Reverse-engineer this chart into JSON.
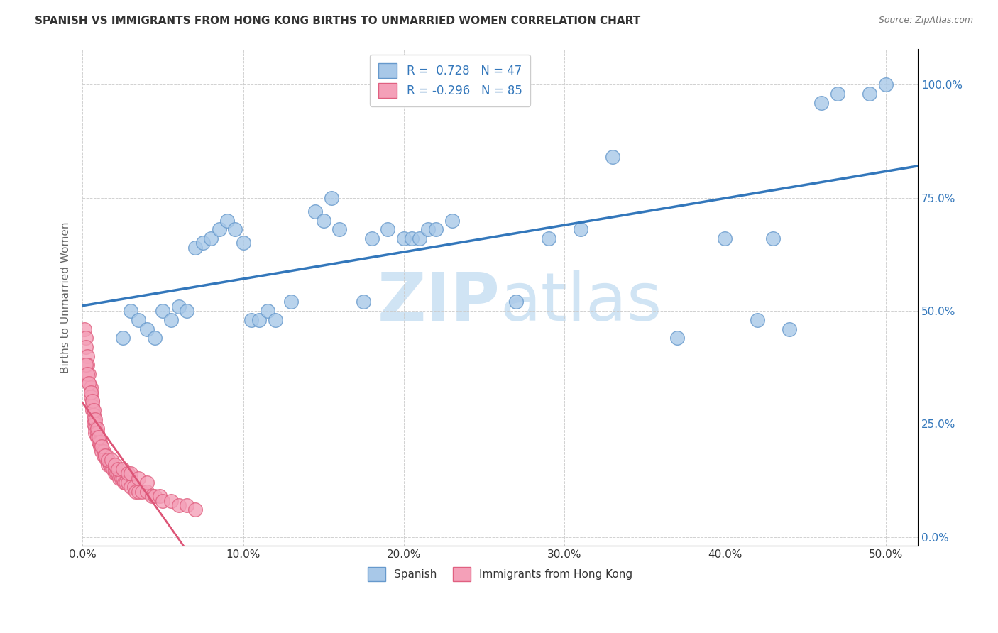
{
  "title": "SPANISH VS IMMIGRANTS FROM HONG KONG BIRTHS TO UNMARRIED WOMEN CORRELATION CHART",
  "source": "Source: ZipAtlas.com",
  "ylabel": "Births to Unmarried Women",
  "xlim": [
    0.0,
    0.52
  ],
  "ylim": [
    -0.02,
    1.08
  ],
  "legend_r_blue": "R =  0.728",
  "legend_n_blue": "N = 47",
  "legend_r_pink": "R = -0.296",
  "legend_n_pink": "N = 85",
  "legend_labels": [
    "Spanish",
    "Immigrants from Hong Kong"
  ],
  "blue_fill": "#a8c8e8",
  "blue_edge": "#6699cc",
  "pink_fill": "#f4a0b8",
  "pink_edge": "#e06080",
  "trend_blue": "#3377bb",
  "trend_pink": "#dd5577",
  "trend_pink_dashed": "#ddaabb",
  "watermark": "ZIPatlas",
  "watermark_color": "#d0e4f4",
  "background": "#ffffff",
  "text_color": "#333333",
  "right_axis_color": "#3377bb",
  "grid_color": "#cccccc",
  "spanish_x": [
    0.025,
    0.03,
    0.035,
    0.04,
    0.045,
    0.05,
    0.055,
    0.06,
    0.065,
    0.07,
    0.075,
    0.08,
    0.085,
    0.09,
    0.095,
    0.1,
    0.105,
    0.11,
    0.115,
    0.12,
    0.13,
    0.145,
    0.15,
    0.155,
    0.16,
    0.175,
    0.18,
    0.19,
    0.2,
    0.205,
    0.21,
    0.215,
    0.22,
    0.23,
    0.27,
    0.29,
    0.31,
    0.33,
    0.37,
    0.4,
    0.42,
    0.43,
    0.44,
    0.46,
    0.47,
    0.49,
    0.5
  ],
  "spanish_y": [
    0.44,
    0.5,
    0.48,
    0.46,
    0.44,
    0.5,
    0.48,
    0.51,
    0.5,
    0.64,
    0.65,
    0.66,
    0.68,
    0.7,
    0.68,
    0.65,
    0.48,
    0.48,
    0.5,
    0.48,
    0.52,
    0.72,
    0.7,
    0.75,
    0.68,
    0.52,
    0.66,
    0.68,
    0.66,
    0.66,
    0.66,
    0.68,
    0.68,
    0.7,
    0.52,
    0.66,
    0.68,
    0.84,
    0.44,
    0.66,
    0.48,
    0.66,
    0.46,
    0.96,
    0.98,
    0.98,
    1.0
  ],
  "hk_x": [
    0.001,
    0.002,
    0.002,
    0.003,
    0.003,
    0.004,
    0.004,
    0.005,
    0.005,
    0.005,
    0.006,
    0.006,
    0.006,
    0.007,
    0.007,
    0.007,
    0.008,
    0.008,
    0.008,
    0.009,
    0.009,
    0.009,
    0.01,
    0.01,
    0.01,
    0.011,
    0.011,
    0.012,
    0.012,
    0.013,
    0.013,
    0.014,
    0.014,
    0.015,
    0.015,
    0.016,
    0.016,
    0.017,
    0.017,
    0.018,
    0.019,
    0.02,
    0.02,
    0.021,
    0.022,
    0.023,
    0.024,
    0.025,
    0.026,
    0.027,
    0.028,
    0.03,
    0.032,
    0.033,
    0.035,
    0.037,
    0.04,
    0.043,
    0.045,
    0.048,
    0.05,
    0.055,
    0.06,
    0.065,
    0.07,
    0.002,
    0.003,
    0.004,
    0.005,
    0.006,
    0.007,
    0.008,
    0.009,
    0.01,
    0.012,
    0.014,
    0.016,
    0.018,
    0.02,
    0.022,
    0.025,
    0.028,
    0.03,
    0.035,
    0.04
  ],
  "hk_y": [
    0.46,
    0.44,
    0.42,
    0.4,
    0.38,
    0.36,
    0.34,
    0.33,
    0.32,
    0.31,
    0.3,
    0.29,
    0.28,
    0.27,
    0.26,
    0.25,
    0.25,
    0.24,
    0.23,
    0.23,
    0.22,
    0.22,
    0.22,
    0.21,
    0.21,
    0.2,
    0.21,
    0.2,
    0.19,
    0.19,
    0.18,
    0.18,
    0.18,
    0.18,
    0.17,
    0.17,
    0.16,
    0.16,
    0.16,
    0.16,
    0.15,
    0.15,
    0.14,
    0.14,
    0.14,
    0.13,
    0.13,
    0.13,
    0.12,
    0.12,
    0.12,
    0.11,
    0.11,
    0.1,
    0.1,
    0.1,
    0.1,
    0.09,
    0.09,
    0.09,
    0.08,
    0.08,
    0.07,
    0.07,
    0.06,
    0.38,
    0.36,
    0.34,
    0.32,
    0.3,
    0.28,
    0.26,
    0.24,
    0.22,
    0.2,
    0.18,
    0.17,
    0.17,
    0.16,
    0.15,
    0.15,
    0.14,
    0.14,
    0.13,
    0.12
  ]
}
